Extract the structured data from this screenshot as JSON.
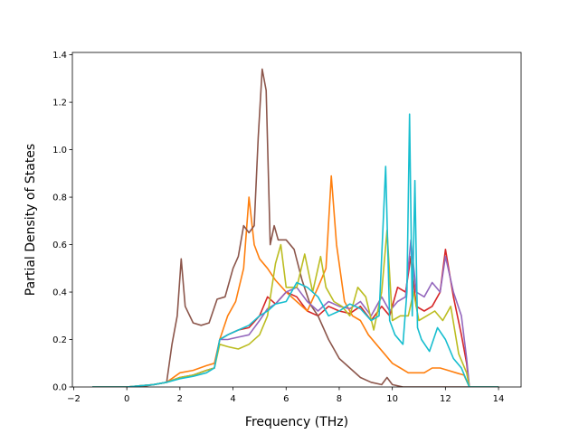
{
  "chart_data": {
    "type": "line",
    "title": "",
    "xlabel": "Frequency (THz)",
    "ylabel": "Partial Density of States",
    "xlim": [
      -2.05,
      14.85
    ],
    "ylim": [
      0,
      1.41
    ],
    "xticks": [
      -2,
      0,
      2,
      4,
      6,
      8,
      10,
      12,
      14
    ],
    "yticks": [
      0.0,
      0.2,
      0.4,
      0.6,
      0.8,
      1.0,
      1.2,
      1.4
    ],
    "xtick_labels": [
      "−2",
      "0",
      "2",
      "4",
      "6",
      "8",
      "10",
      "12",
      "14"
    ],
    "ytick_labels": [
      "0.0",
      "0.2",
      "0.4",
      "0.6",
      "0.8",
      "1.0",
      "1.2",
      "1.4"
    ],
    "grid": false,
    "legend": "none",
    "series": [
      {
        "color": "#d62728",
        "x": [
          -1.3,
          0,
          0.5,
          1.0,
          1.5,
          2.0,
          2.5,
          3.0,
          3.3,
          3.5,
          3.8,
          4.2,
          4.6,
          5.0,
          5.3,
          5.6,
          6.0,
          6.4,
          6.8,
          7.2,
          7.6,
          8.0,
          8.4,
          8.8,
          9.2,
          9.6,
          9.9,
          10.2,
          10.5,
          10.7,
          10.9,
          11.2,
          11.5,
          11.8,
          12.0,
          12.3,
          12.6,
          12.8,
          12.9,
          13.2,
          14.0
        ],
        "y": [
          0,
          0,
          0.005,
          0.01,
          0.02,
          0.04,
          0.05,
          0.07,
          0.08,
          0.2,
          0.22,
          0.24,
          0.25,
          0.3,
          0.38,
          0.35,
          0.4,
          0.38,
          0.32,
          0.3,
          0.34,
          0.32,
          0.31,
          0.34,
          0.28,
          0.34,
          0.3,
          0.42,
          0.4,
          0.55,
          0.34,
          0.32,
          0.34,
          0.4,
          0.58,
          0.38,
          0.22,
          0.1,
          0.0,
          0,
          0
        ]
      },
      {
        "color": "#ff7f0e",
        "x": [
          -1.3,
          0,
          0.5,
          1.0,
          1.5,
          2.0,
          2.5,
          3.0,
          3.3,
          3.5,
          3.8,
          4.1,
          4.4,
          4.6,
          4.8,
          5.0,
          5.3,
          5.6,
          6.0,
          6.4,
          6.8,
          7.2,
          7.5,
          7.7,
          7.9,
          8.2,
          8.5,
          8.8,
          9.1,
          9.4,
          9.7,
          10.0,
          10.3,
          10.6,
          10.9,
          11.2,
          11.5,
          11.8,
          12.1,
          12.4,
          12.7,
          12.9,
          14.0
        ],
        "y": [
          0,
          0,
          0.005,
          0.01,
          0.02,
          0.06,
          0.07,
          0.09,
          0.1,
          0.2,
          0.3,
          0.36,
          0.5,
          0.8,
          0.6,
          0.54,
          0.5,
          0.45,
          0.4,
          0.36,
          0.32,
          0.42,
          0.5,
          0.89,
          0.6,
          0.36,
          0.3,
          0.28,
          0.22,
          0.18,
          0.14,
          0.1,
          0.08,
          0.06,
          0.06,
          0.06,
          0.08,
          0.08,
          0.07,
          0.06,
          0.05,
          0.0,
          0
        ]
      },
      {
        "color": "#8c564b",
        "x": [
          -1.3,
          0,
          0.5,
          1.0,
          1.5,
          1.7,
          1.9,
          2.05,
          2.2,
          2.5,
          2.8,
          3.1,
          3.4,
          3.7,
          4.0,
          4.2,
          4.4,
          4.6,
          4.8,
          4.95,
          5.1,
          5.25,
          5.4,
          5.55,
          5.7,
          6.0,
          6.3,
          6.6,
          6.9,
          7.2,
          7.6,
          8.0,
          8.4,
          8.8,
          9.2,
          9.6,
          9.8,
          10.0,
          10.4,
          10.8,
          11.2,
          11.6,
          12.0,
          12.5,
          13.0,
          14.0
        ],
        "y": [
          0,
          0,
          0.0,
          0.01,
          0.02,
          0.18,
          0.3,
          0.54,
          0.34,
          0.27,
          0.26,
          0.27,
          0.37,
          0.38,
          0.5,
          0.55,
          0.68,
          0.65,
          0.68,
          1.05,
          1.34,
          1.25,
          0.6,
          0.68,
          0.62,
          0.62,
          0.58,
          0.45,
          0.35,
          0.3,
          0.2,
          0.12,
          0.08,
          0.04,
          0.02,
          0.01,
          0.04,
          0.01,
          0.0,
          0.0,
          0.0,
          0.0,
          0,
          0,
          0,
          0
        ]
      },
      {
        "color": "#9467bd",
        "x": [
          -1.3,
          0,
          0.5,
          1.0,
          1.5,
          2.0,
          2.5,
          3.0,
          3.3,
          3.5,
          3.8,
          4.2,
          4.6,
          5.0,
          5.3,
          5.6,
          6.0,
          6.4,
          6.8,
          7.2,
          7.6,
          8.0,
          8.4,
          8.8,
          9.2,
          9.6,
          9.9,
          10.2,
          10.5,
          10.7,
          10.9,
          11.2,
          11.5,
          11.8,
          12.0,
          12.3,
          12.6,
          12.8,
          12.9,
          13.2,
          14.0
        ],
        "y": [
          0,
          0,
          0.005,
          0.01,
          0.02,
          0.04,
          0.05,
          0.07,
          0.08,
          0.2,
          0.2,
          0.21,
          0.22,
          0.28,
          0.33,
          0.35,
          0.4,
          0.42,
          0.36,
          0.32,
          0.36,
          0.34,
          0.33,
          0.36,
          0.3,
          0.38,
          0.32,
          0.36,
          0.38,
          0.62,
          0.4,
          0.38,
          0.44,
          0.4,
          0.55,
          0.4,
          0.3,
          0.12,
          0.0,
          0,
          0
        ]
      },
      {
        "color": "#bcbd22",
        "x": [
          -1.3,
          0,
          0.5,
          1.0,
          1.5,
          2.0,
          2.5,
          3.0,
          3.3,
          3.5,
          3.8,
          4.2,
          4.6,
          5.0,
          5.3,
          5.6,
          5.8,
          6.0,
          6.4,
          6.7,
          7.0,
          7.3,
          7.5,
          7.8,
          8.1,
          8.4,
          8.7,
          9.0,
          9.3,
          9.6,
          9.8,
          10.0,
          10.3,
          10.6,
          10.8,
          11.0,
          11.3,
          11.6,
          11.9,
          12.2,
          12.5,
          12.8,
          12.9,
          14.0
        ],
        "y": [
          0,
          0,
          0.005,
          0.01,
          0.02,
          0.04,
          0.05,
          0.07,
          0.08,
          0.18,
          0.17,
          0.16,
          0.18,
          0.22,
          0.3,
          0.52,
          0.6,
          0.42,
          0.42,
          0.56,
          0.4,
          0.55,
          0.42,
          0.36,
          0.34,
          0.3,
          0.42,
          0.38,
          0.24,
          0.4,
          0.66,
          0.28,
          0.3,
          0.3,
          0.4,
          0.28,
          0.3,
          0.32,
          0.28,
          0.34,
          0.14,
          0.06,
          0.0,
          0
        ]
      },
      {
        "color": "#17becf",
        "x": [
          -1.3,
          0,
          0.5,
          1.0,
          1.5,
          2.0,
          2.5,
          3.0,
          3.3,
          3.5,
          3.8,
          4.2,
          4.6,
          5.0,
          5.3,
          5.6,
          6.0,
          6.4,
          6.8,
          7.2,
          7.6,
          8.0,
          8.4,
          8.8,
          9.2,
          9.5,
          9.75,
          9.9,
          10.1,
          10.4,
          10.55,
          10.65,
          10.75,
          10.85,
          10.95,
          11.1,
          11.4,
          11.7,
          12.0,
          12.3,
          12.6,
          12.9,
          14.0
        ],
        "y": [
          0,
          0,
          0.005,
          0.01,
          0.02,
          0.035,
          0.045,
          0.06,
          0.08,
          0.2,
          0.22,
          0.24,
          0.26,
          0.3,
          0.32,
          0.35,
          0.36,
          0.44,
          0.42,
          0.38,
          0.3,
          0.32,
          0.35,
          0.33,
          0.28,
          0.3,
          0.93,
          0.28,
          0.22,
          0.18,
          0.4,
          1.15,
          0.3,
          0.87,
          0.25,
          0.2,
          0.15,
          0.25,
          0.2,
          0.12,
          0.08,
          0.0,
          0
        ]
      }
    ]
  }
}
